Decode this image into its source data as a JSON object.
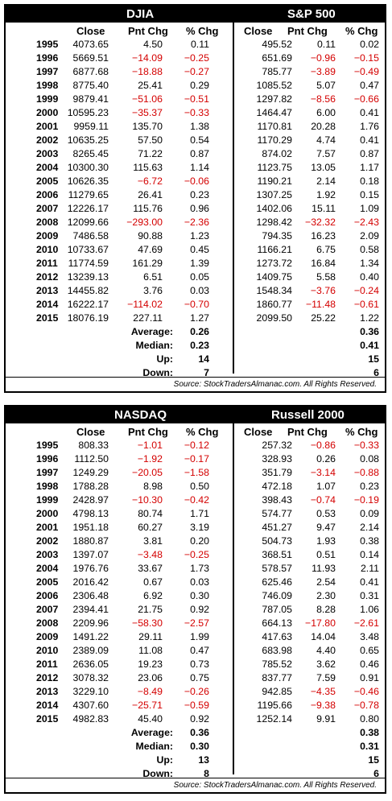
{
  "panels": [
    {
      "left_title": "DJIA",
      "right_title": "S&P 500",
      "columns": {
        "close": "Close",
        "pnt": "Pnt Chg",
        "pct": "% Chg"
      },
      "rows": [
        {
          "year": "1995",
          "l_close": "4073.65",
          "l_pnt": "4.50",
          "l_pct": "0.11",
          "r_close": "495.52",
          "r_pnt": "0.11",
          "r_pct": "0.02"
        },
        {
          "year": "1996",
          "l_close": "5669.51",
          "l_pnt": "−14.09",
          "l_pct": "−0.25",
          "r_close": "651.69",
          "r_pnt": "−0.96",
          "r_pct": "−0.15"
        },
        {
          "year": "1997",
          "l_close": "6877.68",
          "l_pnt": "−18.88",
          "l_pct": "−0.27",
          "r_close": "785.77",
          "r_pnt": "−3.89",
          "r_pct": "−0.49"
        },
        {
          "year": "1998",
          "l_close": "8775.40",
          "l_pnt": "25.41",
          "l_pct": "0.29",
          "r_close": "1085.52",
          "r_pnt": "5.07",
          "r_pct": "0.47"
        },
        {
          "year": "1999",
          "l_close": "9879.41",
          "l_pnt": "−51.06",
          "l_pct": "−0.51",
          "r_close": "1297.82",
          "r_pnt": "−8.56",
          "r_pct": "−0.66"
        },
        {
          "year": "2000",
          "l_close": "10595.23",
          "l_pnt": "−35.37",
          "l_pct": "−0.33",
          "r_close": "1464.47",
          "r_pnt": "6.00",
          "r_pct": "0.41"
        },
        {
          "year": "2001",
          "l_close": "9959.11",
          "l_pnt": "135.70",
          "l_pct": "1.38",
          "r_close": "1170.81",
          "r_pnt": "20.28",
          "r_pct": "1.76"
        },
        {
          "year": "2002",
          "l_close": "10635.25",
          "l_pnt": "57.50",
          "l_pct": "0.54",
          "r_close": "1170.29",
          "r_pnt": "4.74",
          "r_pct": "0.41"
        },
        {
          "year": "2003",
          "l_close": "8265.45",
          "l_pnt": "71.22",
          "l_pct": "0.87",
          "r_close": "874.02",
          "r_pnt": "7.57",
          "r_pct": "0.87"
        },
        {
          "year": "2004",
          "l_close": "10300.30",
          "l_pnt": "115.63",
          "l_pct": "1.14",
          "r_close": "1123.75",
          "r_pnt": "13.05",
          "r_pct": "1.17"
        },
        {
          "year": "2005",
          "l_close": "10626.35",
          "l_pnt": "−6.72",
          "l_pct": "−0.06",
          "r_close": "1190.21",
          "r_pnt": "2.14",
          "r_pct": "0.18"
        },
        {
          "year": "2006",
          "l_close": "11279.65",
          "l_pnt": "26.41",
          "l_pct": "0.23",
          "r_close": "1307.25",
          "r_pnt": "1.92",
          "r_pct": "0.15"
        },
        {
          "year": "2007",
          "l_close": "12226.17",
          "l_pnt": "115.76",
          "l_pct": "0.96",
          "r_close": "1402.06",
          "r_pnt": "15.11",
          "r_pct": "1.09"
        },
        {
          "year": "2008",
          "l_close": "12099.66",
          "l_pnt": "−293.00",
          "l_pct": "−2.36",
          "r_close": "1298.42",
          "r_pnt": "−32.32",
          "r_pct": "−2.43"
        },
        {
          "year": "2009",
          "l_close": "7486.58",
          "l_pnt": "90.88",
          "l_pct": "1.23",
          "r_close": "794.35",
          "r_pnt": "16.23",
          "r_pct": "2.09"
        },
        {
          "year": "2010",
          "l_close": "10733.67",
          "l_pnt": "47.69",
          "l_pct": "0.45",
          "r_close": "1166.21",
          "r_pnt": "6.75",
          "r_pct": "0.58"
        },
        {
          "year": "2011",
          "l_close": "11774.59",
          "l_pnt": "161.29",
          "l_pct": "1.39",
          "r_close": "1273.72",
          "r_pnt": "16.84",
          "r_pct": "1.34"
        },
        {
          "year": "2012",
          "l_close": "13239.13",
          "l_pnt": "6.51",
          "l_pct": "0.05",
          "r_close": "1409.75",
          "r_pnt": "5.58",
          "r_pct": "0.40"
        },
        {
          "year": "2013",
          "l_close": "14455.82",
          "l_pnt": "3.76",
          "l_pct": "0.03",
          "r_close": "1548.34",
          "r_pnt": "−3.76",
          "r_pct": "−0.24"
        },
        {
          "year": "2014",
          "l_close": "16222.17",
          "l_pnt": "−114.02",
          "l_pct": "−0.70",
          "r_close": "1860.77",
          "r_pnt": "−11.48",
          "r_pct": "−0.61"
        },
        {
          "year": "2015",
          "l_close": "18076.19",
          "l_pnt": "227.11",
          "l_pct": "1.27",
          "r_close": "2099.50",
          "r_pnt": "25.22",
          "r_pct": "1.22"
        }
      ],
      "stats": [
        {
          "label": "Average:",
          "left": "0.26",
          "right": "0.36"
        },
        {
          "label": "Median:",
          "left": "0.23",
          "right": "0.41"
        },
        {
          "label": "Up:",
          "left": "14",
          "right": "15"
        },
        {
          "label": "Down:",
          "left": "7",
          "right": "6"
        }
      ],
      "source": "Source: StockTradersAlmanac.com. All Rights Reserved."
    },
    {
      "left_title": "NASDAQ",
      "right_title": "Russell 2000",
      "columns": {
        "close": "Close",
        "pnt": "Pnt Chg",
        "pct": "% Chg"
      },
      "rows": [
        {
          "year": "1995",
          "l_close": "808.33",
          "l_pnt": "−1.01",
          "l_pct": "−0.12",
          "r_close": "257.32",
          "r_pnt": "−0.86",
          "r_pct": "−0.33"
        },
        {
          "year": "1996",
          "l_close": "1112.50",
          "l_pnt": "−1.92",
          "l_pct": "−0.17",
          "r_close": "328.93",
          "r_pnt": "0.26",
          "r_pct": "0.08"
        },
        {
          "year": "1997",
          "l_close": "1249.29",
          "l_pnt": "−20.05",
          "l_pct": "−1.58",
          "r_close": "351.79",
          "r_pnt": "−3.14",
          "r_pct": "−0.88"
        },
        {
          "year": "1998",
          "l_close": "1788.28",
          "l_pnt": "8.98",
          "l_pct": "0.50",
          "r_close": "472.18",
          "r_pnt": "1.07",
          "r_pct": "0.23"
        },
        {
          "year": "1999",
          "l_close": "2428.97",
          "l_pnt": "−10.30",
          "l_pct": "−0.42",
          "r_close": "398.43",
          "r_pnt": "−0.74",
          "r_pct": "−0.19"
        },
        {
          "year": "2000",
          "l_close": "4798.13",
          "l_pnt": "80.74",
          "l_pct": "1.71",
          "r_close": "574.77",
          "r_pnt": "0.53",
          "r_pct": "0.09"
        },
        {
          "year": "2001",
          "l_close": "1951.18",
          "l_pnt": "60.27",
          "l_pct": "3.19",
          "r_close": "451.27",
          "r_pnt": "9.47",
          "r_pct": "2.14"
        },
        {
          "year": "2002",
          "l_close": "1880.87",
          "l_pnt": "3.81",
          "l_pct": "0.20",
          "r_close": "504.73",
          "r_pnt": "1.93",
          "r_pct": "0.38"
        },
        {
          "year": "2003",
          "l_close": "1397.07",
          "l_pnt": "−3.48",
          "l_pct": "−0.25",
          "r_close": "368.51",
          "r_pnt": "0.51",
          "r_pct": "0.14"
        },
        {
          "year": "2004",
          "l_close": "1976.76",
          "l_pnt": "33.67",
          "l_pct": "1.73",
          "r_close": "578.57",
          "r_pnt": "11.93",
          "r_pct": "2.11"
        },
        {
          "year": "2005",
          "l_close": "2016.42",
          "l_pnt": "0.67",
          "l_pct": "0.03",
          "r_close": "625.46",
          "r_pnt": "2.54",
          "r_pct": "0.41"
        },
        {
          "year": "2006",
          "l_close": "2306.48",
          "l_pnt": "6.92",
          "l_pct": "0.30",
          "r_close": "746.09",
          "r_pnt": "2.30",
          "r_pct": "0.31"
        },
        {
          "year": "2007",
          "l_close": "2394.41",
          "l_pnt": "21.75",
          "l_pct": "0.92",
          "r_close": "787.05",
          "r_pnt": "8.28",
          "r_pct": "1.06"
        },
        {
          "year": "2008",
          "l_close": "2209.96",
          "l_pnt": "−58.30",
          "l_pct": "−2.57",
          "r_close": "664.13",
          "r_pnt": "−17.80",
          "r_pct": "−2.61"
        },
        {
          "year": "2009",
          "l_close": "1491.22",
          "l_pnt": "29.11",
          "l_pct": "1.99",
          "r_close": "417.63",
          "r_pnt": "14.04",
          "r_pct": "3.48"
        },
        {
          "year": "2010",
          "l_close": "2389.09",
          "l_pnt": "11.08",
          "l_pct": "0.47",
          "r_close": "683.98",
          "r_pnt": "4.40",
          "r_pct": "0.65"
        },
        {
          "year": "2011",
          "l_close": "2636.05",
          "l_pnt": "19.23",
          "l_pct": "0.73",
          "r_close": "785.52",
          "r_pnt": "3.62",
          "r_pct": "0.46"
        },
        {
          "year": "2012",
          "l_close": "3078.32",
          "l_pnt": "23.06",
          "l_pct": "0.75",
          "r_close": "837.77",
          "r_pnt": "7.59",
          "r_pct": "0.91"
        },
        {
          "year": "2013",
          "l_close": "3229.10",
          "l_pnt": "−8.49",
          "l_pct": "−0.26",
          "r_close": "942.85",
          "r_pnt": "−4.35",
          "r_pct": "−0.46"
        },
        {
          "year": "2014",
          "l_close": "4307.60",
          "l_pnt": "−25.71",
          "l_pct": "−0.59",
          "r_close": "1195.66",
          "r_pnt": "−9.38",
          "r_pct": "−0.78"
        },
        {
          "year": "2015",
          "l_close": "4982.83",
          "l_pnt": "45.40",
          "l_pct": "0.92",
          "r_close": "1252.14",
          "r_pnt": "9.91",
          "r_pct": "0.80"
        }
      ],
      "stats": [
        {
          "label": "Average:",
          "left": "0.36",
          "right": "0.38"
        },
        {
          "label": "Median:",
          "left": "0.30",
          "right": "0.31"
        },
        {
          "label": "Up:",
          "left": "13",
          "right": "15"
        },
        {
          "label": "Down:",
          "left": "8",
          "right": "6"
        }
      ],
      "source": "Source: StockTradersAlmanac.com. All Rights Reserved."
    }
  ]
}
